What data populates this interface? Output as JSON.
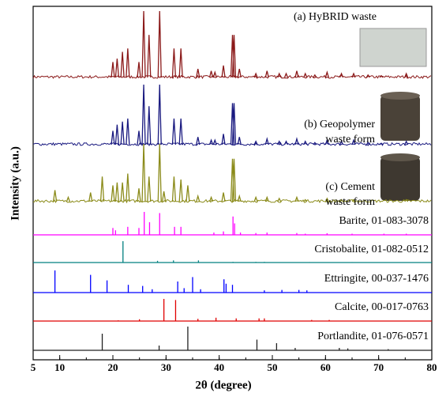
{
  "chart_data": {
    "type": "line",
    "xlabel": "2θ (degree)",
    "ylabel": "Intensity (a.u.)",
    "xlim": [
      5,
      80
    ],
    "xticks": [
      10,
      20,
      30,
      40,
      50,
      60,
      70,
      80
    ],
    "series": [
      {
        "label": [
          "(a) HyBRID waste"
        ],
        "style": "profile",
        "color": "#8b1a1a",
        "x": [
          20.0,
          20.8,
          21.8,
          22.8,
          24.9,
          25.8,
          26.8,
          28.8,
          31.5,
          32.8,
          36.0,
          38.5,
          39.2,
          40.8,
          42.5,
          42.8,
          43.8,
          46.9,
          49.0,
          51.3,
          52.6,
          54.6,
          56.2,
          58.0,
          60.3,
          63.0,
          65.3,
          68.0,
          70.5,
          75.2
        ],
        "values": [
          25,
          30,
          40,
          45,
          25,
          100,
          65,
          100,
          45,
          45,
          15,
          12,
          10,
          20,
          65,
          65,
          15,
          8,
          12,
          8,
          8,
          12,
          8,
          6,
          10,
          8,
          8,
          6,
          5,
          8
        ]
      },
      {
        "label": [
          "(b) Geopolymer",
          "waste form"
        ],
        "style": "profile",
        "color": "#1a1a80",
        "x": [
          20.0,
          20.8,
          21.8,
          22.8,
          24.9,
          25.8,
          26.8,
          28.8,
          31.5,
          32.8,
          36.0,
          38.5,
          39.2,
          40.8,
          42.5,
          42.8,
          43.8,
          46.9,
          49.0,
          51.3,
          52.6,
          54.6,
          56.2,
          58.0,
          60.3,
          63.0,
          65.3,
          68.0,
          70.5,
          75.2
        ],
        "values": [
          25,
          35,
          40,
          45,
          25,
          100,
          65,
          100,
          45,
          45,
          15,
          10,
          10,
          20,
          70,
          70,
          15,
          8,
          12,
          8,
          8,
          12,
          8,
          6,
          10,
          8,
          10,
          6,
          5,
          8
        ]
      },
      {
        "label": [
          "(c) Cement",
          "waste form"
        ],
        "style": "profile",
        "color": "#8b8b1a",
        "x": [
          9.1,
          11.6,
          15.8,
          18.0,
          20.0,
          20.8,
          21.8,
          22.8,
          24.9,
          25.8,
          26.8,
          28.8,
          29.6,
          31.5,
          32.8,
          34.1,
          36.0,
          38.5,
          40.8,
          42.5,
          42.8,
          43.8,
          46.9,
          49.0,
          51.3,
          54.6,
          56.2,
          60.3,
          63.0,
          65.3,
          75.2
        ],
        "values": [
          22,
          10,
          18,
          45,
          30,
          35,
          35,
          50,
          25,
          100,
          45,
          100,
          20,
          45,
          40,
          30,
          12,
          10,
          18,
          75,
          75,
          12,
          10,
          10,
          8,
          10,
          6,
          8,
          6,
          6,
          6
        ]
      },
      {
        "label": [
          "Barite, 01-083-3078"
        ],
        "style": "stick",
        "color": "#ff00ff",
        "x": [
          20.0,
          20.5,
          22.8,
          24.9,
          25.9,
          26.9,
          28.8,
          31.6,
          32.8,
          39.0,
          40.8,
          42.6,
          42.9,
          44.0,
          46.9,
          49.0,
          54.6,
          56.2,
          60.3,
          65.0,
          71.0,
          75.2
        ],
        "values": [
          30,
          20,
          35,
          30,
          100,
          55,
          95,
          35,
          35,
          10,
          15,
          80,
          50,
          10,
          8,
          10,
          8,
          5,
          7,
          5,
          5,
          5
        ]
      },
      {
        "label": [
          "Cristobalite, 01-082-0512"
        ],
        "style": "stick",
        "color": "#008080",
        "x": [
          21.9,
          28.4,
          31.4,
          36.1,
          42.6,
          46.9,
          48.5,
          57.0,
          65.0
        ],
        "values": [
          100,
          8,
          10,
          10,
          3,
          3,
          3,
          2,
          2
        ]
      },
      {
        "label": [
          "Ettringite, 00-037-1476"
        ],
        "style": "stick",
        "color": "#0000ff",
        "x": [
          9.1,
          15.8,
          18.9,
          22.9,
          25.6,
          27.4,
          32.2,
          33.4,
          35.0,
          36.5,
          40.9,
          41.3,
          42.5,
          48.5,
          51.8,
          55.0,
          56.5
        ],
        "values": [
          100,
          80,
          55,
          35,
          30,
          15,
          50,
          20,
          70,
          15,
          60,
          40,
          35,
          10,
          12,
          12,
          10
        ]
      },
      {
        "label": [
          "Calcite, 00-017-0763"
        ],
        "style": "stick",
        "color": "#e00000",
        "x": [
          21.0,
          25.0,
          29.6,
          31.8,
          36.0,
          39.4,
          43.2,
          47.5,
          48.5,
          57.4,
          60.7
        ],
        "values": [
          3,
          8,
          100,
          95,
          10,
          15,
          12,
          12,
          12,
          5,
          5
        ]
      },
      {
        "label": [
          "Portlandite, 01-076-0571"
        ],
        "style": "stick",
        "color": "#222222",
        "x": [
          18.0,
          28.7,
          34.1,
          47.1,
          50.8,
          54.3,
          62.6,
          64.2,
          71.8
        ],
        "values": [
          70,
          20,
          100,
          45,
          30,
          10,
          10,
          8,
          5
        ]
      }
    ]
  }
}
